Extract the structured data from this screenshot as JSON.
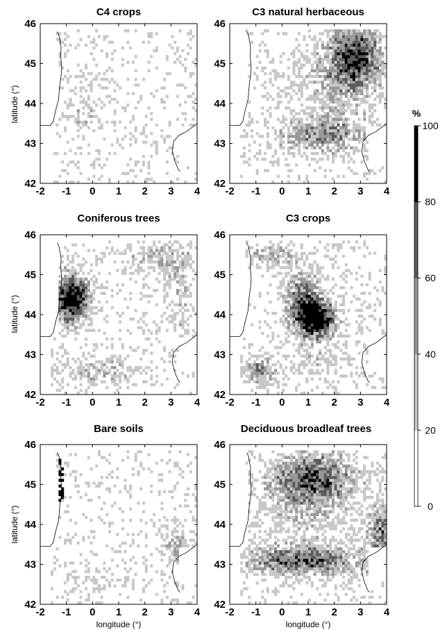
{
  "figure": {
    "panels": [
      {
        "title": "C4 crops",
        "key": "c4crops"
      },
      {
        "title": "C3 natural herbaceous",
        "key": "c3herb"
      },
      {
        "title": "Coniferous trees",
        "key": "conifer"
      },
      {
        "title": "C3 crops",
        "key": "c3crops"
      },
      {
        "title": "Bare soils",
        "key": "bare"
      },
      {
        "title": "Deciduous broadleaf trees",
        "key": "decid"
      }
    ],
    "longitude_label": "longitude (°)",
    "latitude_label": "latitude (°)",
    "lon_ticks": [
      "-2",
      "-1",
      "0",
      "1",
      "2",
      "3",
      "4"
    ],
    "lat_ticks": [
      "42",
      "43",
      "44",
      "45",
      "46"
    ],
    "lon_range": [
      -2,
      4
    ],
    "lat_range": [
      42,
      46
    ],
    "colorbar": {
      "unit": "%",
      "ticks": [
        "0",
        "20",
        "40",
        "60",
        "80",
        "100"
      ],
      "colors": [
        "#ffffff",
        "#c8c8c8",
        "#999999",
        "#5a5a5a",
        "#000000"
      ]
    }
  }
}
